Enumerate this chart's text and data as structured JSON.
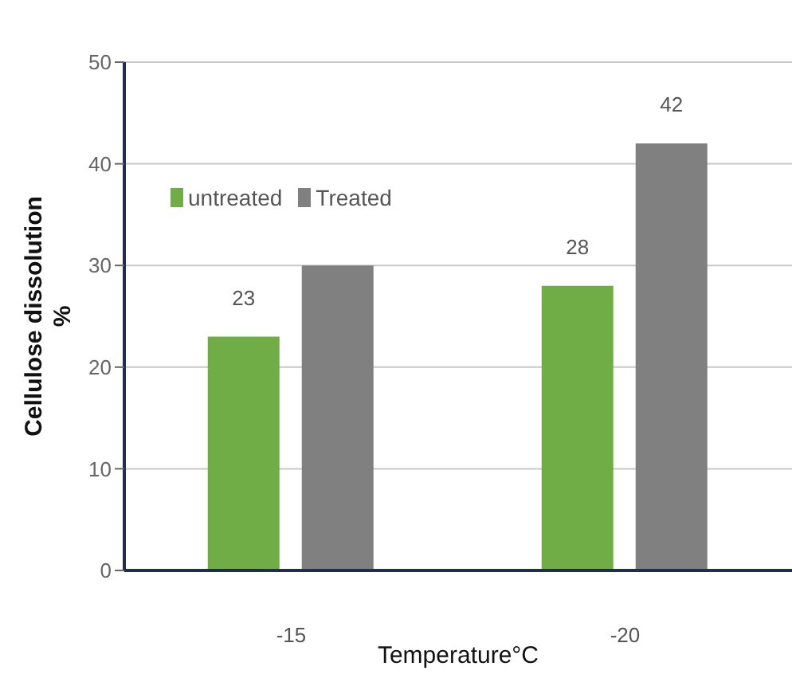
{
  "chart_data": {
    "type": "bar",
    "xlabel": "Temperature°C",
    "ylabel": "Cellulose dissolution %",
    "categories": [
      "-15",
      "-20"
    ],
    "series": [
      {
        "name": "untreated",
        "color": "#70ad47",
        "values": [
          23,
          28
        ],
        "value_labels": [
          "23",
          "28"
        ]
      },
      {
        "name": "Treated",
        "color": "#808080",
        "values": [
          30,
          42
        ],
        "value_labels": [
          null,
          "42"
        ]
      }
    ],
    "ylim": [
      0,
      50
    ],
    "yticks": [
      0,
      10,
      20,
      30,
      40,
      50
    ],
    "grid": "y",
    "legend": "top left"
  }
}
